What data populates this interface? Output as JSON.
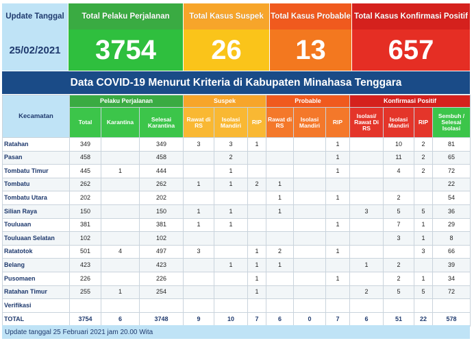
{
  "stats": {
    "update": {
      "label": "Update Tanggal",
      "value": "25/02/2021"
    },
    "pelaku": {
      "label": "Total Pelaku Perjalanan",
      "value": "3754"
    },
    "suspek": {
      "label": "Total Kasus Suspek",
      "value": "26"
    },
    "probable": {
      "label": "Total Kasus Probable",
      "value": "13"
    },
    "konfirmasi": {
      "label": "Total Kasus Konfirmasi Positif",
      "value": "657"
    }
  },
  "banner": "Data COVID-19 Menurut Kriteria di Kabupaten Minahasa Tenggara",
  "table": {
    "kecamatan_header": "Kecamatan",
    "groups": {
      "pelaku": "Pelaku Perjalanan",
      "suspek": "Suspek",
      "probable": "Probable",
      "konfirmasi": "Konfirmasi Positif"
    },
    "columns": [
      "Total",
      "Karantina",
      "Selesai Karantina",
      "Rawat di RS",
      "Isolasi Mandiri",
      "RIP",
      "Rawat di RS",
      "Isolasi Mandiri",
      "RIP",
      "Isolasi/ Rawat Di RS",
      "Isolasi Mandiri",
      "RIP",
      "Sembuh / Selesai Isolasi"
    ],
    "rows": [
      {
        "name": "Ratahan",
        "cells": [
          "349",
          "",
          "349",
          "3",
          "3",
          "1",
          "",
          "",
          "1",
          "",
          "10",
          "2",
          "81"
        ]
      },
      {
        "name": "Pasan",
        "cells": [
          "458",
          "",
          "458",
          "",
          "2",
          "",
          "",
          "",
          "1",
          "",
          "11",
          "2",
          "65"
        ]
      },
      {
        "name": "Tombatu Timur",
        "cells": [
          "445",
          "1",
          "444",
          "",
          "1",
          "",
          "",
          "",
          "1",
          "",
          "4",
          "2",
          "72"
        ]
      },
      {
        "name": "Tombatu",
        "cells": [
          "262",
          "",
          "262",
          "1",
          "1",
          "2",
          "1",
          "",
          "",
          "",
          "",
          "",
          "22"
        ]
      },
      {
        "name": "Tombatu Utara",
        "cells": [
          "202",
          "",
          "202",
          "",
          "",
          "",
          "1",
          "",
          "1",
          "",
          "2",
          "",
          "54"
        ]
      },
      {
        "name": "Silian Raya",
        "cells": [
          "150",
          "",
          "150",
          "1",
          "1",
          "",
          "1",
          "",
          "",
          "3",
          "5",
          "5",
          "36"
        ]
      },
      {
        "name": "Touluaan",
        "cells": [
          "381",
          "",
          "381",
          "1",
          "1",
          "",
          "",
          "",
          "1",
          "",
          "7",
          "1",
          "29"
        ]
      },
      {
        "name": "Touluaan Selatan",
        "cells": [
          "102",
          "",
          "102",
          "",
          "",
          "",
          "",
          "",
          "",
          "",
          "3",
          "1",
          "8"
        ]
      },
      {
        "name": "Ratatotok",
        "cells": [
          "501",
          "4",
          "497",
          "3",
          "",
          "1",
          "2",
          "",
          "1",
          "",
          "",
          "3",
          "66"
        ]
      },
      {
        "name": "Belang",
        "cells": [
          "423",
          "",
          "423",
          "",
          "1",
          "1",
          "1",
          "",
          "",
          "1",
          "2",
          "",
          "39"
        ]
      },
      {
        "name": "Pusomaen",
        "cells": [
          "226",
          "",
          "226",
          "",
          "",
          "1",
          "",
          "",
          "1",
          "",
          "2",
          "1",
          "34"
        ]
      },
      {
        "name": "Ratahan Timur",
        "cells": [
          "255",
          "1",
          "254",
          "",
          "",
          "1",
          "",
          "",
          "",
          "2",
          "5",
          "5",
          "72"
        ]
      },
      {
        "name": "Verifikasi",
        "cells": [
          "",
          "",
          "",
          "",
          "",
          "",
          "",
          "",
          "",
          "",
          "",
          "",
          ""
        ]
      }
    ],
    "total": {
      "name": "TOTAL",
      "cells": [
        "3754",
        "6",
        "3748",
        "9",
        "10",
        "7",
        "6",
        "0",
        "7",
        "6",
        "51",
        "22",
        "578"
      ]
    }
  },
  "footer": "Update tanggal 25 Februari 2021 jam 20.00 Wita",
  "colors": {
    "green": "#3aab42",
    "yellow": "#fac41a",
    "orange": "#f3781f",
    "red": "#e52e24",
    "navy": "#1a4b87",
    "light_blue": "#bfe3f6"
  }
}
